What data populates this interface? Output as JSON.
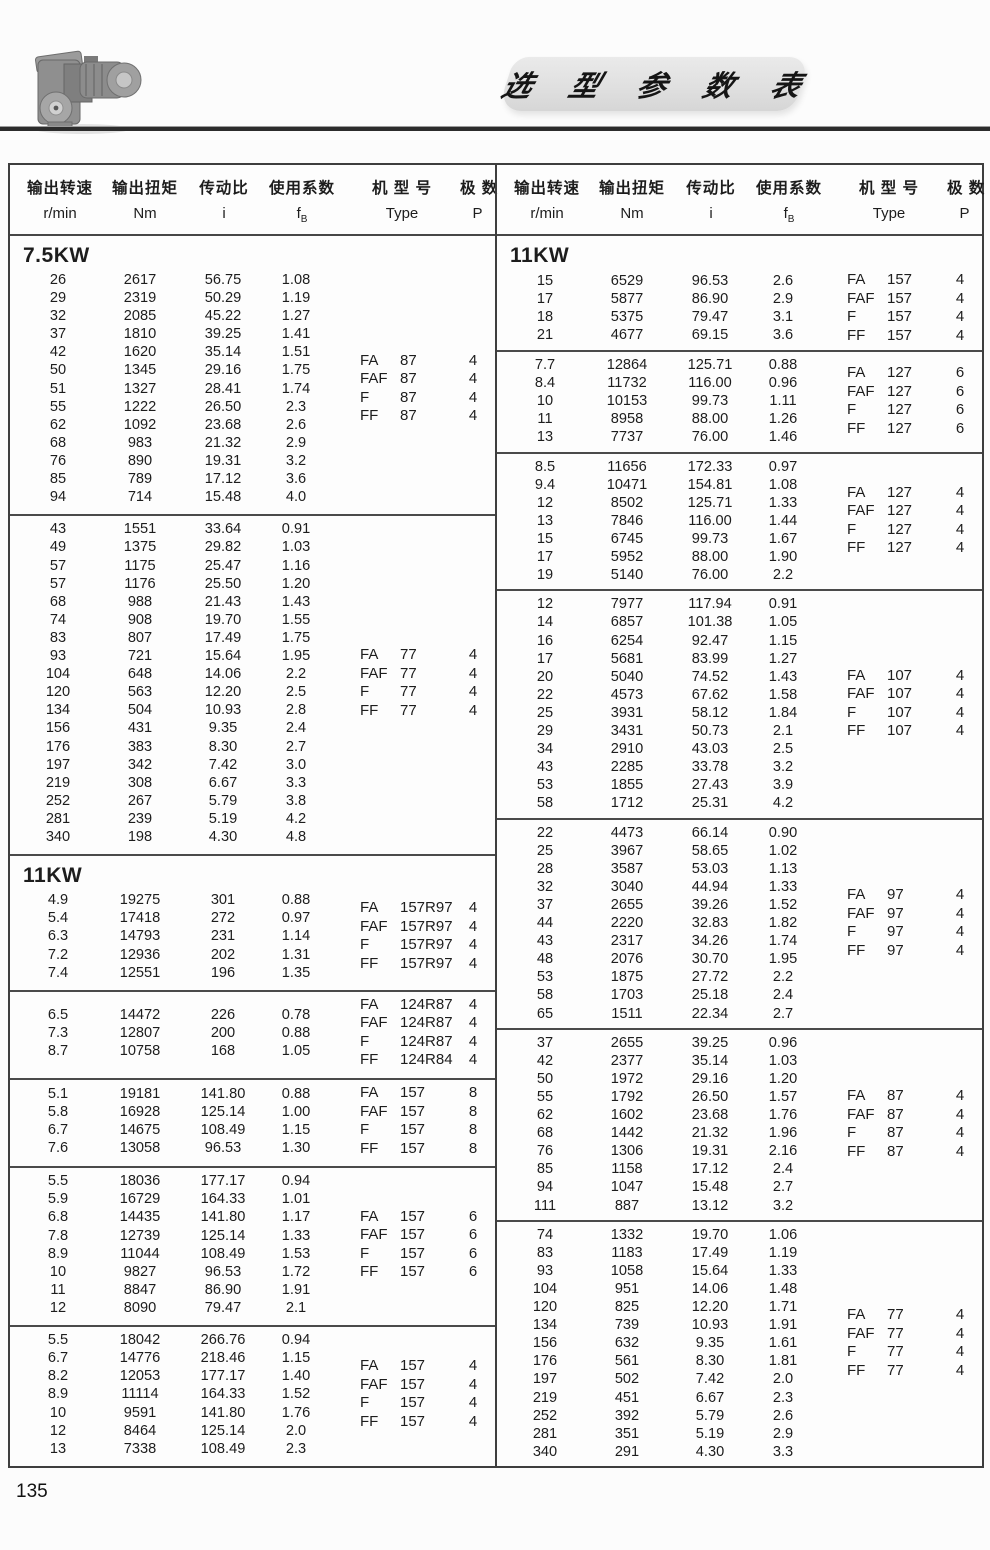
{
  "page": {
    "number": "135"
  },
  "title": {
    "text": "选 型 参 数 表"
  },
  "motor_image": {
    "name": "gear-motor-photo"
  },
  "header": {
    "cn": [
      "输出转速",
      "输出扭矩",
      "传动比",
      "使用系数",
      "机 型 号",
      "极 数"
    ],
    "units": [
      "r/min",
      "Nm",
      "i",
      "f|B",
      "Type",
      "P"
    ]
  },
  "left_column": {
    "groups": [
      {
        "power": "7.5KW",
        "rows": [
          [
            "26",
            "2617",
            "56.75",
            "1.08"
          ],
          [
            "29",
            "2319",
            "50.29",
            "1.19"
          ],
          [
            "32",
            "2085",
            "45.22",
            "1.27"
          ],
          [
            "37",
            "1810",
            "39.25",
            "1.41"
          ],
          [
            "42",
            "1620",
            "35.14",
            "1.51"
          ],
          [
            "50",
            "1345",
            "29.16",
            "1.75"
          ],
          [
            "51",
            "1327",
            "28.41",
            "1.74"
          ],
          [
            "55",
            "1222",
            "26.50",
            "2.3"
          ],
          [
            "62",
            "1092",
            "23.68",
            "2.6"
          ],
          [
            "68",
            "983",
            "21.32",
            "2.9"
          ],
          [
            "76",
            "890",
            "19.31",
            "3.2"
          ],
          [
            "85",
            "789",
            "17.12",
            "3.6"
          ],
          [
            "94",
            "714",
            "15.48",
            "4.0"
          ]
        ],
        "models": [
          [
            "FA",
            "87",
            "4"
          ],
          [
            "FAF",
            "87",
            "4"
          ],
          [
            "F",
            "87",
            "4"
          ],
          [
            "FF",
            "87",
            "4"
          ]
        ]
      },
      {
        "rows": [
          [
            "43",
            "1551",
            "33.64",
            "0.91"
          ],
          [
            "49",
            "1375",
            "29.82",
            "1.03"
          ],
          [
            "57",
            "1175",
            "25.47",
            "1.16"
          ],
          [
            "57",
            "1176",
            "25.50",
            "1.20"
          ],
          [
            "68",
            "988",
            "21.43",
            "1.43"
          ],
          [
            "74",
            "908",
            "19.70",
            "1.55"
          ],
          [
            "83",
            "807",
            "17.49",
            "1.75"
          ],
          [
            "93",
            "721",
            "15.64",
            "1.95"
          ],
          [
            "104",
            "648",
            "14.06",
            "2.2"
          ],
          [
            "120",
            "563",
            "12.20",
            "2.5"
          ],
          [
            "134",
            "504",
            "10.93",
            "2.8"
          ],
          [
            "156",
            "431",
            "9.35",
            "2.4"
          ],
          [
            "176",
            "383",
            "8.30",
            "2.7"
          ],
          [
            "197",
            "342",
            "7.42",
            "3.0"
          ],
          [
            "219",
            "308",
            "6.67",
            "3.3"
          ],
          [
            "252",
            "267",
            "5.79",
            "3.8"
          ],
          [
            "281",
            "239",
            "5.19",
            "4.2"
          ],
          [
            "340",
            "198",
            "4.30",
            "4.8"
          ]
        ],
        "models": [
          [
            "FA",
            "77",
            "4"
          ],
          [
            "FAF",
            "77",
            "4"
          ],
          [
            "F",
            "77",
            "4"
          ],
          [
            "FF",
            "77",
            "4"
          ]
        ]
      },
      {
        "power": "11KW",
        "rows": [
          [
            "4.9",
            "19275",
            "301",
            "0.88"
          ],
          [
            "5.4",
            "17418",
            "272",
            "0.97"
          ],
          [
            "6.3",
            "14793",
            "231",
            "1.14"
          ],
          [
            "7.2",
            "12936",
            "202",
            "1.31"
          ],
          [
            "7.4",
            "12551",
            "196",
            "1.35"
          ]
        ],
        "models": [
          [
            "FA",
            "157R97",
            "4"
          ],
          [
            "FAF",
            "157R97",
            "4"
          ],
          [
            "F",
            "157R97",
            "4"
          ],
          [
            "FF",
            "157R97",
            "4"
          ]
        ]
      },
      {
        "rows": [
          [
            "6.5",
            "14472",
            "226",
            "0.78"
          ],
          [
            "7.3",
            "12807",
            "200",
            "0.88"
          ],
          [
            "8.7",
            "10758",
            "168",
            "1.05"
          ]
        ],
        "models": [
          [
            "FA",
            "124R87",
            "4"
          ],
          [
            "FAF",
            "124R87",
            "4"
          ],
          [
            "F",
            "124R87",
            "4"
          ],
          [
            "FF",
            "124R84",
            "4"
          ]
        ]
      },
      {
        "rows": [
          [
            "5.1",
            "19181",
            "141.80",
            "0.88"
          ],
          [
            "5.8",
            "16928",
            "125.14",
            "1.00"
          ],
          [
            "6.7",
            "14675",
            "108.49",
            "1.15"
          ],
          [
            "7.6",
            "13058",
            "96.53",
            "1.30"
          ]
        ],
        "models": [
          [
            "FA",
            "157",
            "8"
          ],
          [
            "FAF",
            "157",
            "8"
          ],
          [
            "F",
            "157",
            "8"
          ],
          [
            "FF",
            "157",
            "8"
          ]
        ]
      },
      {
        "rows": [
          [
            "5.5",
            "18036",
            "177.17",
            "0.94"
          ],
          [
            "5.9",
            "16729",
            "164.33",
            "1.01"
          ],
          [
            "6.8",
            "14435",
            "141.80",
            "1.17"
          ],
          [
            "7.8",
            "12739",
            "125.14",
            "1.33"
          ],
          [
            "8.9",
            "11044",
            "108.49",
            "1.53"
          ],
          [
            "10",
            "9827",
            "96.53",
            "1.72"
          ],
          [
            "11",
            "8847",
            "86.90",
            "1.91"
          ],
          [
            "12",
            "8090",
            "79.47",
            "2.1"
          ]
        ],
        "models": [
          [
            "FA",
            "157",
            "6"
          ],
          [
            "FAF",
            "157",
            "6"
          ],
          [
            "F",
            "157",
            "6"
          ],
          [
            "FF",
            "157",
            "6"
          ]
        ]
      },
      {
        "rows": [
          [
            "5.5",
            "18042",
            "266.76",
            "0.94"
          ],
          [
            "6.7",
            "14776",
            "218.46",
            "1.15"
          ],
          [
            "8.2",
            "12053",
            "177.17",
            "1.40"
          ],
          [
            "8.9",
            "11114",
            "164.33",
            "1.52"
          ],
          [
            "10",
            "9591",
            "141.80",
            "1.76"
          ],
          [
            "12",
            "8464",
            "125.14",
            "2.0"
          ],
          [
            "13",
            "7338",
            "108.49",
            "2.3"
          ]
        ],
        "models": [
          [
            "FA",
            "157",
            "4"
          ],
          [
            "FAF",
            "157",
            "4"
          ],
          [
            "F",
            "157",
            "4"
          ],
          [
            "FF",
            "157",
            "4"
          ]
        ]
      }
    ]
  },
  "right_column": {
    "groups": [
      {
        "power": "11KW",
        "rows": [
          [
            "15",
            "6529",
            "96.53",
            "2.6"
          ],
          [
            "17",
            "5877",
            "86.90",
            "2.9"
          ],
          [
            "18",
            "5375",
            "79.47",
            "3.1"
          ],
          [
            "21",
            "4677",
            "69.15",
            "3.6"
          ]
        ],
        "models": [
          [
            "FA",
            "157",
            "4"
          ],
          [
            "FAF",
            "157",
            "4"
          ],
          [
            "F",
            "157",
            "4"
          ],
          [
            "FF",
            "157",
            "4"
          ]
        ]
      },
      {
        "rows": [
          [
            "7.7",
            "12864",
            "125.71",
            "0.88"
          ],
          [
            "8.4",
            "11732",
            "116.00",
            "0.96"
          ],
          [
            "10",
            "10153",
            "99.73",
            "1.11"
          ],
          [
            "11",
            "8958",
            "88.00",
            "1.26"
          ],
          [
            "13",
            "7737",
            "76.00",
            "1.46"
          ]
        ],
        "models": [
          [
            "FA",
            "127",
            "6"
          ],
          [
            "FAF",
            "127",
            "6"
          ],
          [
            "F",
            "127",
            "6"
          ],
          [
            "FF",
            "127",
            "6"
          ]
        ]
      },
      {
        "rows": [
          [
            "8.5",
            "11656",
            "172.33",
            "0.97"
          ],
          [
            "9.4",
            "10471",
            "154.81",
            "1.08"
          ],
          [
            "12",
            "8502",
            "125.71",
            "1.33"
          ],
          [
            "13",
            "7846",
            "116.00",
            "1.44"
          ],
          [
            "15",
            "6745",
            "99.73",
            "1.67"
          ],
          [
            "17",
            "5952",
            "88.00",
            "1.90"
          ],
          [
            "19",
            "5140",
            "76.00",
            "2.2"
          ]
        ],
        "models": [
          [
            "FA",
            "127",
            "4"
          ],
          [
            "FAF",
            "127",
            "4"
          ],
          [
            "F",
            "127",
            "4"
          ],
          [
            "FF",
            "127",
            "4"
          ]
        ]
      },
      {
        "rows": [
          [
            "12",
            "7977",
            "117.94",
            "0.91"
          ],
          [
            "14",
            "6857",
            "101.38",
            "1.05"
          ],
          [
            "16",
            "6254",
            "92.47",
            "1.15"
          ],
          [
            "17",
            "5681",
            "83.99",
            "1.27"
          ],
          [
            "20",
            "5040",
            "74.52",
            "1.43"
          ],
          [
            "22",
            "4573",
            "67.62",
            "1.58"
          ],
          [
            "25",
            "3931",
            "58.12",
            "1.84"
          ],
          [
            "29",
            "3431",
            "50.73",
            "2.1"
          ],
          [
            "34",
            "2910",
            "43.03",
            "2.5"
          ],
          [
            "43",
            "2285",
            "33.78",
            "3.2"
          ],
          [
            "53",
            "1855",
            "27.43",
            "3.9"
          ],
          [
            "58",
            "1712",
            "25.31",
            "4.2"
          ]
        ],
        "models": [
          [
            "FA",
            "107",
            "4"
          ],
          [
            "FAF",
            "107",
            "4"
          ],
          [
            "F",
            "107",
            "4"
          ],
          [
            "FF",
            "107",
            "4"
          ]
        ]
      },
      {
        "rows": [
          [
            "22",
            "4473",
            "66.14",
            "0.90"
          ],
          [
            "25",
            "3967",
            "58.65",
            "1.02"
          ],
          [
            "28",
            "3587",
            "53.03",
            "1.13"
          ],
          [
            "32",
            "3040",
            "44.94",
            "1.33"
          ],
          [
            "37",
            "2655",
            "39.26",
            "1.52"
          ],
          [
            "44",
            "2220",
            "32.83",
            "1.82"
          ],
          [
            "43",
            "2317",
            "34.26",
            "1.74"
          ],
          [
            "48",
            "2076",
            "30.70",
            "1.95"
          ],
          [
            "53",
            "1875",
            "27.72",
            "2.2"
          ],
          [
            "58",
            "1703",
            "25.18",
            "2.4"
          ],
          [
            "65",
            "1511",
            "22.34",
            "2.7"
          ]
        ],
        "models": [
          [
            "FA",
            "97",
            "4"
          ],
          [
            "FAF",
            "97",
            "4"
          ],
          [
            "F",
            "97",
            "4"
          ],
          [
            "FF",
            "97",
            "4"
          ]
        ]
      },
      {
        "rows": [
          [
            "37",
            "2655",
            "39.25",
            "0.96"
          ],
          [
            "42",
            "2377",
            "35.14",
            "1.03"
          ],
          [
            "50",
            "1972",
            "29.16",
            "1.20"
          ],
          [
            "55",
            "1792",
            "26.50",
            "1.57"
          ],
          [
            "62",
            "1602",
            "23.68",
            "1.76"
          ],
          [
            "68",
            "1442",
            "21.32",
            "1.96"
          ],
          [
            "76",
            "1306",
            "19.31",
            "2.16"
          ],
          [
            "85",
            "1158",
            "17.12",
            "2.4"
          ],
          [
            "94",
            "1047",
            "15.48",
            "2.7"
          ],
          [
            "111",
            "887",
            "13.12",
            "3.2"
          ]
        ],
        "models": [
          [
            "FA",
            "87",
            "4"
          ],
          [
            "FAF",
            "87",
            "4"
          ],
          [
            "F",
            "87",
            "4"
          ],
          [
            "FF",
            "87",
            "4"
          ]
        ]
      },
      {
        "rows": [
          [
            "74",
            "1332",
            "19.70",
            "1.06"
          ],
          [
            "83",
            "1183",
            "17.49",
            "1.19"
          ],
          [
            "93",
            "1058",
            "15.64",
            "1.33"
          ],
          [
            "104",
            "951",
            "14.06",
            "1.48"
          ],
          [
            "120",
            "825",
            "12.20",
            "1.71"
          ],
          [
            "134",
            "739",
            "10.93",
            "1.91"
          ],
          [
            "156",
            "632",
            "9.35",
            "1.61"
          ],
          [
            "176",
            "561",
            "8.30",
            "1.81"
          ],
          [
            "197",
            "502",
            "7.42",
            "2.0"
          ],
          [
            "219",
            "451",
            "6.67",
            "2.3"
          ],
          [
            "252",
            "392",
            "5.79",
            "2.6"
          ],
          [
            "281",
            "351",
            "5.19",
            "2.9"
          ],
          [
            "340",
            "291",
            "4.30",
            "3.3"
          ]
        ],
        "models": [
          [
            "FA",
            "77",
            "4"
          ],
          [
            "FAF",
            "77",
            "4"
          ],
          [
            "F",
            "77",
            "4"
          ],
          [
            "FF",
            "77",
            "4"
          ]
        ]
      }
    ]
  },
  "colors": {
    "border": "#3e3e3e",
    "separator": "#4a4a4a",
    "title_band": "#e0e0e0",
    "rule": "#2c2c2c",
    "text": "#1d1d1d"
  }
}
